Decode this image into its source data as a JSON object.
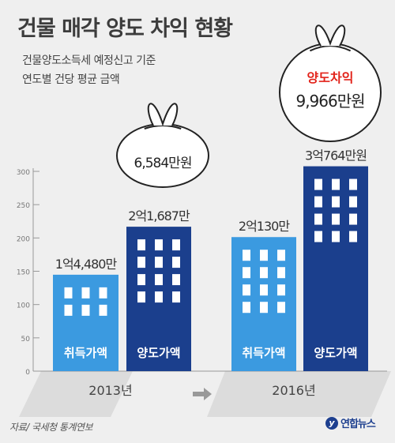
{
  "title": "건물 매각 양도 차익 현황",
  "subtitle_line1": "건물양도소득세 예정신고 기준",
  "subtitle_line2": "연도별 건당 평균 금액",
  "source": "자료/ 국세청 통계연보",
  "logo_mark": "y",
  "logo_text": "연합뉴스",
  "colors": {
    "acquisition": "#3b9ae0",
    "transfer": "#1b3f8d",
    "window": "#ffffff",
    "highlight_text": "#e2231a",
    "axis": "#999999"
  },
  "chart_data": {
    "type": "bar",
    "unit": "백만원",
    "ylim": [
      0,
      300
    ],
    "yticks": [
      0,
      50,
      100,
      150,
      200,
      250,
      300
    ],
    "grid": false,
    "years": [
      {
        "year": "2013년",
        "bars": [
          {
            "category": "취득가액",
            "value": 144.8,
            "label": "1억4,480만",
            "series": "acquisition"
          },
          {
            "category": "양도가액",
            "value": 216.87,
            "label": "2억1,687만",
            "series": "transfer"
          }
        ],
        "gain": {
          "label": "6,584만원",
          "value": 65.84
        }
      },
      {
        "year": "2016년",
        "bars": [
          {
            "category": "취득가액",
            "value": 201.3,
            "label": "2억130만",
            "series": "acquisition"
          },
          {
            "category": "양도가액",
            "value": 307.64,
            "label": "3억764만원",
            "series": "transfer"
          }
        ],
        "gain": {
          "heading": "양도차익",
          "label": "9,966만원",
          "value": 99.66
        }
      }
    ]
  }
}
